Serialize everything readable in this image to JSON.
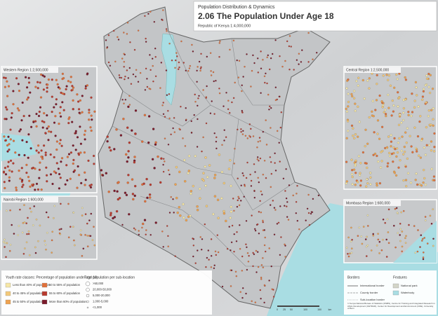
{
  "header": {
    "subtitle": "Population Distribution & Dynamics",
    "title": "2.06  The Population Under Age 18",
    "scale": "Republic of Kenya 1:4,000,000"
  },
  "insets": [
    {
      "label": "Western Region 1:2,500,000"
    },
    {
      "label": "Central Region 1:2,500,000"
    },
    {
      "label": "Nairobi Region 1:600,000"
    },
    {
      "label": "Mombasa Region 1:600,000"
    }
  ],
  "legend": {
    "youth": {
      "title": "Youth rate classes: Percentage of population under age 18",
      "classes": [
        {
          "label": "Less than 40% of population",
          "color": "#f6e7a6"
        },
        {
          "label": "40 to 45% of population",
          "color": "#f3c979"
        },
        {
          "label": "45 to 50% of population",
          "color": "#eea24f"
        },
        {
          "label": "50 to 55% of population",
          "color": "#e0703a"
        },
        {
          "label": "55 to 60% of population",
          "color": "#b83a2e"
        },
        {
          "label": "More than 60% of population",
          "color": "#7a1a2a"
        }
      ]
    },
    "population": {
      "title": "Total population per sub-location",
      "classes": [
        ">50,000",
        "20,000-50,000",
        "5,000-20,000",
        "1,000-5,000",
        "<1,000"
      ]
    },
    "borders": {
      "title": "Borders",
      "items": [
        "International border",
        "County border",
        "Sub-location border"
      ]
    },
    "features": {
      "title": "Features",
      "items": [
        "National park",
        "Waterbody"
      ]
    }
  },
  "scale_bar": [
    "0",
    "25",
    "50",
    "100",
    "150",
    "km"
  ],
  "credit": "© Kenya National Bureau of Statistics (KNBS), Centre for Training and Integrated Research in ASAL Development (CETRAD), Center for Development and Environment (CDE), University of Bern"
}
